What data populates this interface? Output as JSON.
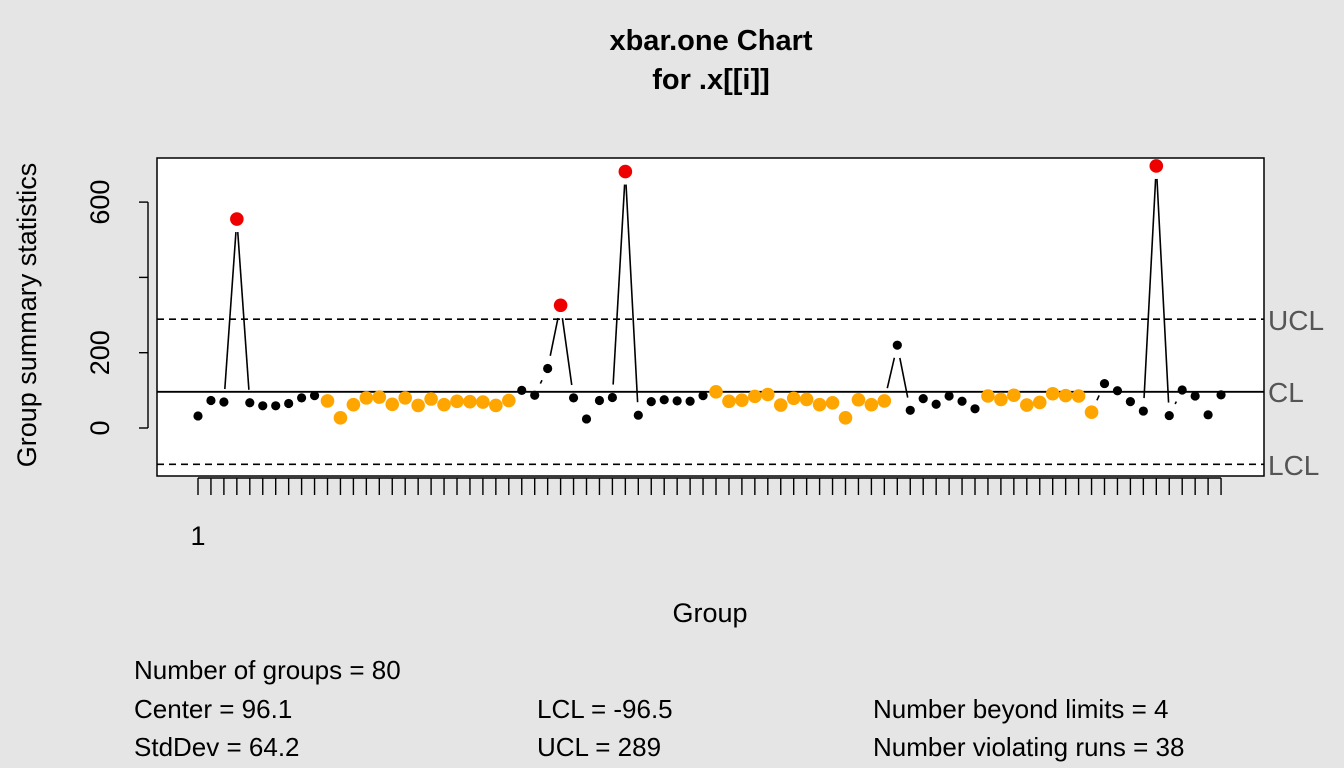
{
  "chart_data": {
    "type": "line",
    "title": "xbar.one Chart",
    "subtitle": "for .x[[i]]",
    "xlabel": "Group",
    "ylabel": "Group summary statistics",
    "x_tick_label": "1",
    "y_ticks": [
      0,
      200,
      600
    ],
    "ylim": [
      -96.5,
      700
    ],
    "limits": {
      "ucl": 289,
      "cl": 96.1,
      "lcl": -96.5
    },
    "limit_labels": {
      "ucl": "UCL",
      "cl": "CL",
      "lcl": "LCL"
    },
    "colors": {
      "normal": "#000000",
      "beyond": "#ee0000",
      "violating": "#ffa500"
    },
    "series": [
      {
        "values": [
          32,
          73,
          69,
          555,
          67,
          59,
          59,
          65,
          80,
          86,
          72,
          27,
          62,
          80,
          82,
          63,
          80,
          60,
          77,
          62,
          71,
          70,
          69,
          60,
          73,
          100,
          87,
          158,
          326,
          80,
          24,
          73,
          81,
          681,
          34,
          70,
          75,
          72,
          71,
          86,
          96,
          71,
          74,
          84,
          89,
          61,
          79,
          76,
          62,
          67,
          27,
          75,
          62,
          72,
          220,
          47,
          78,
          63,
          85,
          71,
          51,
          85,
          76,
          87,
          61,
          68,
          91,
          86,
          85,
          42,
          118,
          99,
          70,
          45,
          696,
          33,
          101,
          85,
          35,
          88
        ],
        "status": [
          "n",
          "n",
          "n",
          "b",
          "n",
          "n",
          "n",
          "n",
          "n",
          "n",
          "v",
          "v",
          "v",
          "v",
          "v",
          "v",
          "v",
          "v",
          "v",
          "v",
          "v",
          "v",
          "v",
          "v",
          "v",
          "n",
          "n",
          "n",
          "b",
          "n",
          "n",
          "n",
          "n",
          "b",
          "n",
          "n",
          "n",
          "n",
          "n",
          "n",
          "v",
          "v",
          "v",
          "v",
          "v",
          "v",
          "v",
          "v",
          "v",
          "v",
          "v",
          "v",
          "v",
          "v",
          "n",
          "n",
          "n",
          "n",
          "n",
          "n",
          "n",
          "v",
          "v",
          "v",
          "v",
          "v",
          "v",
          "v",
          "v",
          "v",
          "n",
          "n",
          "n",
          "n",
          "b",
          "n",
          "n",
          "n",
          "n",
          "n"
        ]
      }
    ]
  },
  "stats": {
    "groups": "Number of groups = 80",
    "center": "Center = 96.1",
    "stddev": "StdDev = 64.2",
    "lcl": "LCL = -96.5",
    "ucl": "UCL = 289",
    "beyond": "Number beyond limits = 4",
    "violating": "Number violating runs = 38"
  }
}
